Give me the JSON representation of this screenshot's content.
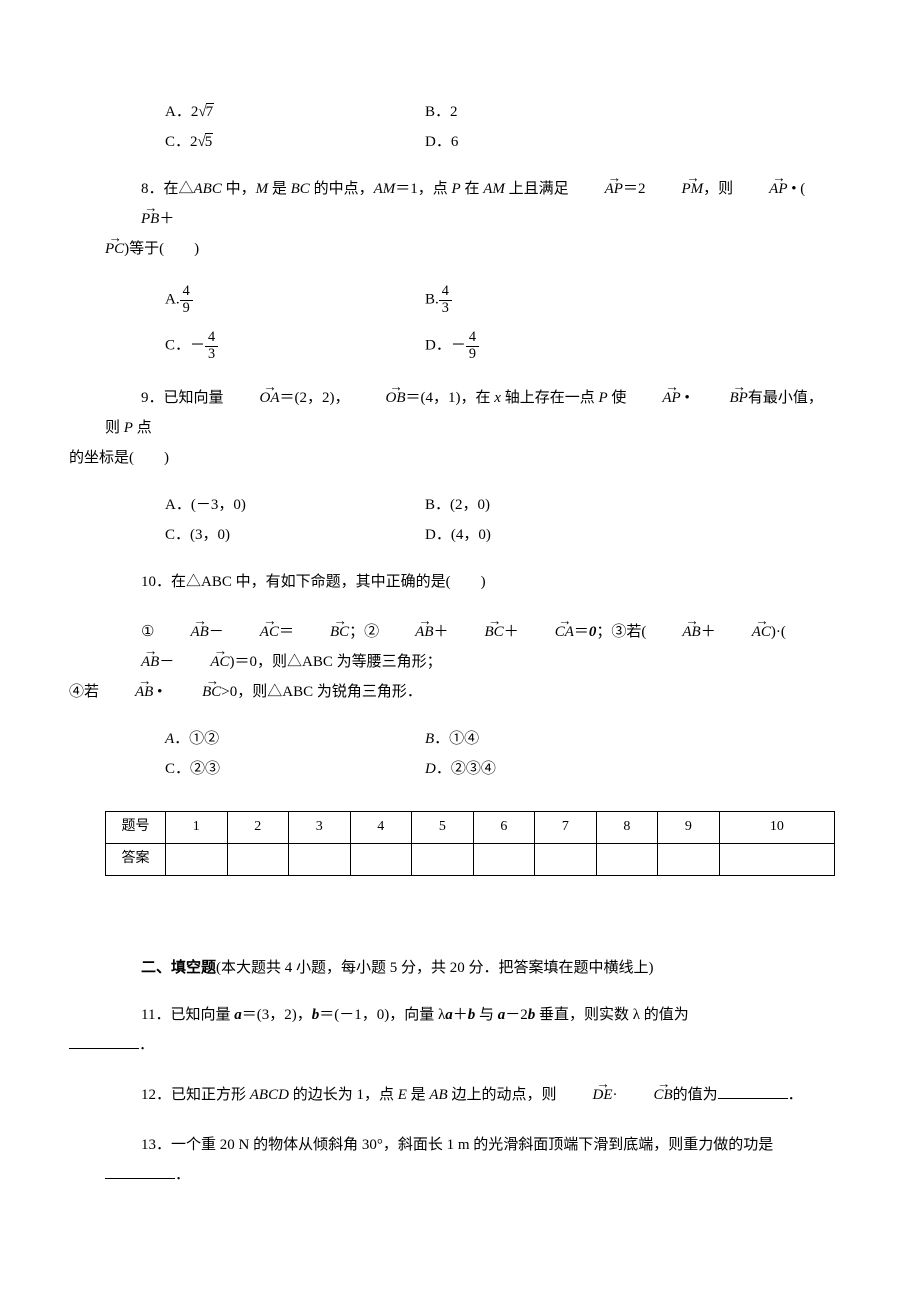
{
  "q7": {
    "A": "A．2√7",
    "B": "B．2",
    "C": "C．2√5",
    "D": "D．6"
  },
  "q8": {
    "stem_pre": "8．在△",
    "abc": "ABC",
    "stem_mid1": " 中，",
    "m": "M",
    "stem_mid2": " 是 ",
    "bc": "BC",
    "stem_mid3": " 的中点，",
    "am": "AM",
    "eq1": "＝1，点 ",
    "p": "P",
    "stem_mid4": " 在 ",
    "stem_mid5": " 上且满足",
    "ap": "AP",
    "eqtwo": "＝2",
    "pm": "PM",
    "comma": "，则",
    "dot": " • (",
    "pb": "PB",
    "plus": "＋",
    "pc": "PC",
    "close": ")等于(　　)",
    "A_label": "A.",
    "A_num": "4",
    "A_den": "9",
    "B_label": "B.",
    "B_num": "4",
    "B_den": "3",
    "C_label": "C．－",
    "C_num": "4",
    "C_den": "3",
    "D_label": "D．－",
    "D_num": "4",
    "D_den": "9"
  },
  "q9": {
    "stem_pre": "9．已知向量",
    "oa": "OA",
    "eq1": "＝(2，2)，",
    "ob": "OB",
    "eq2": "＝(4，1)，在 ",
    "x": "x",
    "stem_mid": " 轴上存在一点 ",
    "p": "P",
    "stem_mid2": " 使",
    "ap": "AP",
    "dot": " • ",
    "bp": "BP",
    "stem_end1": "有最小值，则 ",
    "stem_end2": " 点",
    "line2": "的坐标是(　　)",
    "A": "A．(－3，0)",
    "B": "B．(2，0)",
    "C": "C．(3，0)",
    "D": "D．(4，0)"
  },
  "q10": {
    "stem": "10．在△ABC 中，有如下命题，其中正确的是(　　)",
    "c1_pre": "①",
    "ab": "AB",
    "minus": "－",
    "ac": "AC",
    "eq": "＝",
    "bc": "BC",
    "semi": "；②",
    "plus": "＋",
    "ca": "CA",
    "eqz": "＝",
    "zero": "0",
    "c3": "；③若(",
    "plus2": "＋",
    "dot1": ")·(",
    "minus2": "－",
    "close1": ")＝0，则△ABC 为等腰三角形；",
    "c4_pre": "④若",
    "dot2": " • ",
    "gt": ">0，则△ABC 为锐角三角形．",
    "A": "A．①②",
    "B": "B．①④",
    "C": "C．②③",
    "D": "D．②③④"
  },
  "table": {
    "h0": "题号",
    "h1": "1",
    "h2": "2",
    "h3": "3",
    "h4": "4",
    "h5": "5",
    "h6": "6",
    "h7": "7",
    "h8": "8",
    "h9": "9",
    "h10": "10",
    "r0": "答案"
  },
  "section2": {
    "title": "二、填空题",
    "desc": "(本大题共 4 小题，每小题 5 分，共 20 分．把答案填在题中横线上)"
  },
  "q11": {
    "pre": "11．已知向量 ",
    "a": "a",
    "eq1": "＝(3，2)，",
    "b": "b",
    "eq2": "＝(－1，0)，向量 λ",
    "plus": "＋",
    "mid": " 与 ",
    "minus2b": "－2",
    "end": " 垂直，则实数 λ 的值为",
    "dot": "．"
  },
  "q12": {
    "pre": "12．已知正方形 ",
    "abcd": "ABCD",
    "mid1": " 的边长为 1，点 ",
    "e": "E",
    "mid2": " 是 ",
    "ab": "AB",
    "mid3": " 边上的动点，则",
    "de": "DE",
    "dot": "·",
    "cb": "CB",
    "end": "的值为",
    "period": "．"
  },
  "q13": {
    "text": "13．一个重 20 N 的物体从倾斜角 30°，斜面长 1 m 的光滑斜面顶端下滑到底端，则重力做的功是",
    "period": "．"
  }
}
